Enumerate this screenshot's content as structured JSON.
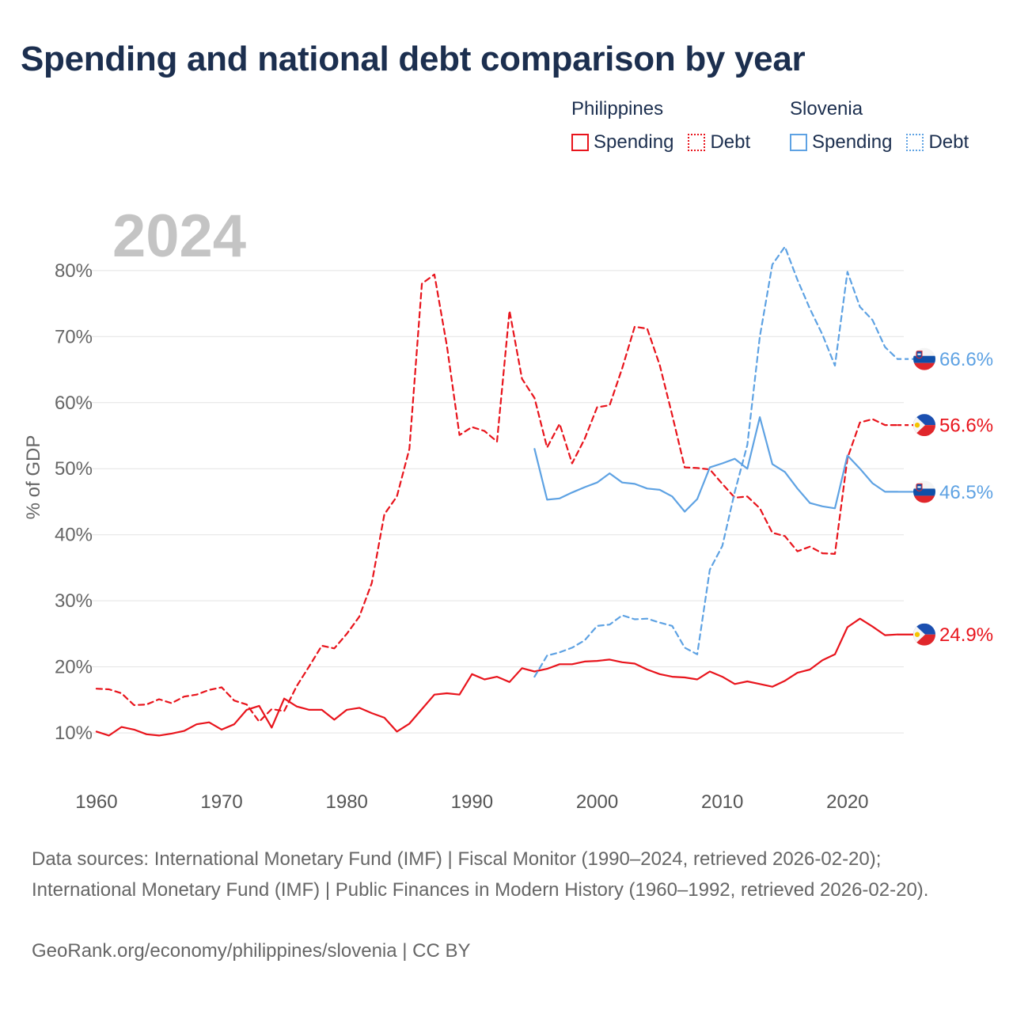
{
  "title": "Spending and national debt comparison by year",
  "legend": {
    "groups": [
      {
        "name": "Philippines",
        "color": "#e8141c",
        "items": [
          {
            "label": "Spending",
            "style": "solid"
          },
          {
            "label": "Debt",
            "style": "dashed"
          }
        ]
      },
      {
        "name": "Slovenia",
        "color": "#5ea2e3",
        "items": [
          {
            "label": "Spending",
            "style": "solid"
          },
          {
            "label": "Debt",
            "style": "dashed"
          }
        ]
      }
    ]
  },
  "sources": "Data sources: International Monetary Fund (IMF) | Fiscal Monitor (1990–2024, retrieved 2026-02-20); International Monetary Fund (IMF) | Public Finances in Modern History (1960–1992, retrieved 2026-02-20).",
  "credit": "GeoRank.org/economy/philippines/slovenia | CC BY",
  "chart_data": {
    "type": "line",
    "title": "Spending and national debt comparison by year",
    "year_watermark": "2024",
    "ylabel": "% of GDP",
    "xlabel": "",
    "xlim": [
      1959.5,
      2024.5
    ],
    "ylim": [
      4.5,
      91
    ],
    "x_ticks": [
      1960,
      1970,
      1980,
      1990,
      2000,
      2010,
      2020
    ],
    "y_ticks": [
      10,
      20,
      30,
      40,
      50,
      60,
      70,
      80
    ],
    "y_tick_labels": [
      "10%",
      "20%",
      "30%",
      "40%",
      "50%",
      "60%",
      "70%",
      "80%"
    ],
    "grid": true,
    "series": [
      {
        "name": "Philippines Spending",
        "country": "Philippines",
        "metric": "Spending",
        "color": "#e8141c",
        "dash": false,
        "start_year": 1960,
        "values": [
          10.2,
          9.6,
          10.9,
          10.5,
          9.8,
          9.6,
          9.9,
          10.3,
          11.3,
          11.6,
          10.5,
          11.3,
          13.5,
          14.1,
          10.8,
          15.2,
          14.0,
          13.5,
          13.5,
          12.0,
          13.5,
          13.8,
          13.0,
          12.3,
          10.2,
          11.4,
          13.6,
          15.8,
          16.0,
          15.8,
          18.9,
          18.1,
          18.5,
          17.7,
          19.8,
          19.3,
          19.7,
          20.4,
          20.4,
          20.8,
          20.9,
          21.1,
          20.7,
          20.5,
          19.6,
          18.9,
          18.5,
          18.4,
          18.1,
          19.3,
          18.5,
          17.4,
          17.8,
          17.4,
          17.0,
          17.9,
          19.1,
          19.6,
          21.0,
          21.9,
          26.0,
          27.3,
          26.1,
          24.8,
          24.9
        ],
        "end_label": "24.9%"
      },
      {
        "name": "Philippines Debt",
        "country": "Philippines",
        "metric": "Debt",
        "color": "#e8141c",
        "dash": true,
        "start_year": 1960,
        "values": [
          16.7,
          16.6,
          16.0,
          14.2,
          14.3,
          15.1,
          14.5,
          15.5,
          15.8,
          16.5,
          16.9,
          14.9,
          14.3,
          11.7,
          13.6,
          13.3,
          17.1,
          20.1,
          23.2,
          22.8,
          25.0,
          27.6,
          32.7,
          43.1,
          45.8,
          53.0,
          78.0,
          79.4,
          68.6,
          55.1,
          56.3,
          55.7,
          54.1,
          73.9,
          63.6,
          60.7,
          53.2,
          56.8,
          50.8,
          54.5,
          59.3,
          59.6,
          65.2,
          71.5,
          71.2,
          65.7,
          58.1,
          50.2,
          50.1,
          49.9,
          47.7,
          45.6,
          45.8,
          44.0,
          40.3,
          39.8,
          37.5,
          38.2,
          37.2,
          37.1,
          51.6,
          57.0,
          57.5,
          56.6,
          56.6
        ],
        "end_label": "56.6%"
      },
      {
        "name": "Slovenia Spending",
        "country": "Slovenia",
        "metric": "Spending",
        "color": "#5ea2e3",
        "dash": false,
        "start_year": 1995,
        "values": [
          53.0,
          45.3,
          45.5,
          46.4,
          47.2,
          47.9,
          49.3,
          47.9,
          47.7,
          47.0,
          46.8,
          45.8,
          43.5,
          45.4,
          50.2,
          50.8,
          51.5,
          50.0,
          57.8,
          50.7,
          49.5,
          47.0,
          44.8,
          44.3,
          44.0,
          52.0,
          50.0,
          47.8,
          46.5,
          46.5
        ],
        "end_label": "46.5%"
      },
      {
        "name": "Slovenia Debt",
        "country": "Slovenia",
        "metric": "Debt",
        "color": "#5ea2e3",
        "dash": true,
        "start_year": 1995,
        "values": [
          18.5,
          21.7,
          22.2,
          22.9,
          24.0,
          26.2,
          26.4,
          27.8,
          27.2,
          27.3,
          26.7,
          26.2,
          22.9,
          21.9,
          34.7,
          38.3,
          46.5,
          53.6,
          70.0,
          80.9,
          83.6,
          78.6,
          74.2,
          70.3,
          65.6,
          79.8,
          74.5,
          72.5,
          68.4,
          66.6
        ],
        "end_label": "66.6%"
      }
    ],
    "end_markers": [
      {
        "series": "Slovenia Debt",
        "country": "Slovenia",
        "label": "66.6%"
      },
      {
        "series": "Philippines Debt",
        "country": "Philippines",
        "label": "56.6%"
      },
      {
        "series": "Slovenia Spending",
        "country": "Slovenia",
        "label": "46.5%"
      },
      {
        "series": "Philippines Spending",
        "country": "Philippines",
        "label": "24.9%"
      }
    ]
  }
}
